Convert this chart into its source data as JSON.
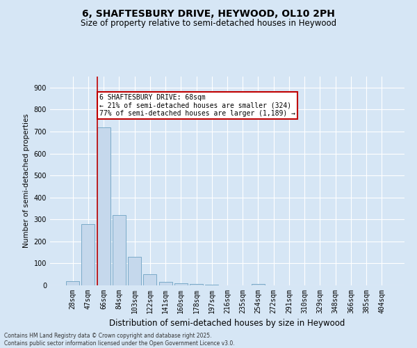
{
  "title": "6, SHAFTESBURY DRIVE, HEYWOOD, OL10 2PH",
  "subtitle": "Size of property relative to semi-detached houses in Heywood",
  "xlabel": "Distribution of semi-detached houses by size in Heywood",
  "ylabel": "Number of semi-detached properties",
  "categories": [
    "28sqm",
    "47sqm",
    "66sqm",
    "84sqm",
    "103sqm",
    "122sqm",
    "141sqm",
    "160sqm",
    "178sqm",
    "197sqm",
    "216sqm",
    "235sqm",
    "254sqm",
    "272sqm",
    "291sqm",
    "310sqm",
    "329sqm",
    "348sqm",
    "366sqm",
    "385sqm",
    "404sqm"
  ],
  "values": [
    18,
    280,
    720,
    320,
    130,
    52,
    15,
    10,
    5,
    2,
    0,
    0,
    5,
    0,
    0,
    0,
    0,
    0,
    0,
    0,
    0
  ],
  "bar_color": "#c5d8ec",
  "bar_edge_color": "#7aaac8",
  "highlight_bar_index": 2,
  "vline_color": "#c00000",
  "annotation_box_edge": "#c00000",
  "ylim": [
    0,
    950
  ],
  "yticks": [
    0,
    100,
    200,
    300,
    400,
    500,
    600,
    700,
    800,
    900
  ],
  "annotation_title": "6 SHAFTESBURY DRIVE: 68sqm",
  "annotation_line1": "← 21% of semi-detached houses are smaller (324)",
  "annotation_line2": "77% of semi-detached houses are larger (1,189) →",
  "background_color": "#d6e6f5",
  "plot_bg_color": "#d6e6f5",
  "grid_color": "#ffffff",
  "footer_line1": "Contains HM Land Registry data © Crown copyright and database right 2025.",
  "footer_line2": "Contains public sector information licensed under the Open Government Licence v3.0.",
  "title_fontsize": 10,
  "subtitle_fontsize": 8.5,
  "ylabel_fontsize": 7.5,
  "xlabel_fontsize": 8.5,
  "tick_fontsize": 7,
  "footer_fontsize": 5.5
}
